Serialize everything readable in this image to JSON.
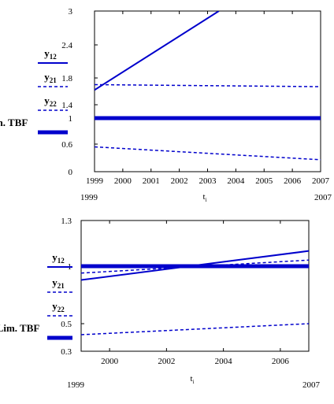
{
  "chart_data": [
    {
      "type": "line",
      "xlabel": "t",
      "xlabel_sub": "i",
      "xlim": [
        1999,
        2007
      ],
      "ylim": [
        0,
        3
      ],
      "yticks": [
        "0",
        "0.6",
        "1",
        "1.4",
        "1.8",
        "2.4",
        "3"
      ],
      "ytick_values": [
        0,
        0.6,
        1.0,
        1.4,
        1.8,
        2.4,
        3.0
      ],
      "xticks": [
        "1999",
        "2000",
        "2001",
        "2002",
        "2003",
        "2004",
        "2005",
        "2006",
        "2007"
      ],
      "xrange_labels": [
        "1999",
        "2007"
      ],
      "grid": false,
      "legend": "left",
      "series": [
        {
          "name": "y",
          "name_sub": "12",
          "style": "solid",
          "width": 2,
          "color": "#0000cc",
          "x": [
            1999,
            2003.4
          ],
          "y": [
            1.62,
            3.0
          ]
        },
        {
          "name": "y",
          "name_sub": "21",
          "style": "dashed",
          "width": 1.5,
          "color": "#0000cc",
          "x": [
            1999,
            2007
          ],
          "y": [
            1.7,
            1.67
          ]
        },
        {
          "name": "y",
          "name_sub": "22",
          "style": "dashed",
          "width": 1.5,
          "color": "#0000cc",
          "x": [
            1999,
            2007
          ],
          "y": [
            0.54,
            0.26
          ]
        },
        {
          "name": "Lim. TBF",
          "name_sub": "",
          "style": "solid",
          "width": 5,
          "color": "#0000cc",
          "x": [
            1999,
            2007
          ],
          "y": [
            1.0,
            1.0
          ]
        }
      ]
    },
    {
      "type": "line",
      "xlabel": "t",
      "xlabel_sub": "i",
      "xlim": [
        1999,
        2007
      ],
      "ylim": [
        0.3,
        1.3
      ],
      "yticks": [
        "0.3",
        "0.5",
        "1",
        "1.3"
      ],
      "ytick_values": [
        0.3,
        0.5,
        1.0,
        1.3
      ],
      "xticks": [
        "2000",
        "2002",
        "2004",
        "2006"
      ],
      "xrange_labels": [
        "1999",
        "2007"
      ],
      "grid": false,
      "legend": "left",
      "series": [
        {
          "name": "y",
          "name_sub": "12",
          "style": "solid",
          "width": 2,
          "color": "#0000cc",
          "x": [
            1999,
            2007
          ],
          "y": [
            0.88,
            1.1
          ]
        },
        {
          "name": "y",
          "name_sub": "21",
          "style": "dashed",
          "width": 1.5,
          "color": "#0000cc",
          "x": [
            1999,
            2007
          ],
          "y": [
            0.94,
            1.04
          ]
        },
        {
          "name": "y",
          "name_sub": "22",
          "style": "dashed",
          "width": 1.5,
          "color": "#0000cc",
          "x": [
            1999,
            2007
          ],
          "y": [
            0.42,
            0.5
          ]
        },
        {
          "name": "Lim. TBF",
          "name_sub": "",
          "style": "solid",
          "width": 5,
          "color": "#0000cc",
          "x": [
            1999,
            2007
          ],
          "y": [
            1.0,
            1.0
          ]
        }
      ]
    }
  ]
}
